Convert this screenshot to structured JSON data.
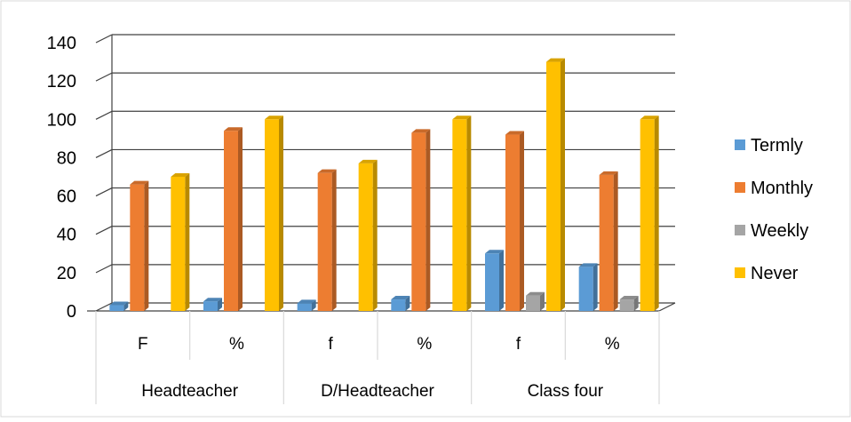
{
  "chart_data": {
    "type": "bar",
    "title": "",
    "xlabel": "",
    "ylabel": "",
    "ylim": [
      0,
      140
    ],
    "yticks": [
      0,
      20,
      40,
      60,
      80,
      100,
      120,
      140
    ],
    "grid": true,
    "legend_position": "right",
    "categories": [
      "F",
      "%",
      "f",
      "%",
      "f",
      "%"
    ],
    "groups": [
      {
        "label": "Headteacher"
      },
      {
        "label": "D/Headteacher"
      },
      {
        "label": "Class four"
      }
    ],
    "series": [
      {
        "name": "Termly",
        "color": "#5B9BD5",
        "values": [
          3,
          5,
          4,
          6,
          30,
          23
        ]
      },
      {
        "name": "Monthly",
        "color": "#ED7D31",
        "values": [
          66,
          94,
          72,
          93,
          92,
          71
        ]
      },
      {
        "name": "Weekly",
        "color": "#A5A5A5",
        "values": [
          0,
          0,
          0,
          0,
          8,
          6
        ]
      },
      {
        "name": "Never",
        "color": "#FFC000",
        "values": [
          70,
          100,
          77,
          100,
          130,
          100
        ]
      }
    ]
  }
}
